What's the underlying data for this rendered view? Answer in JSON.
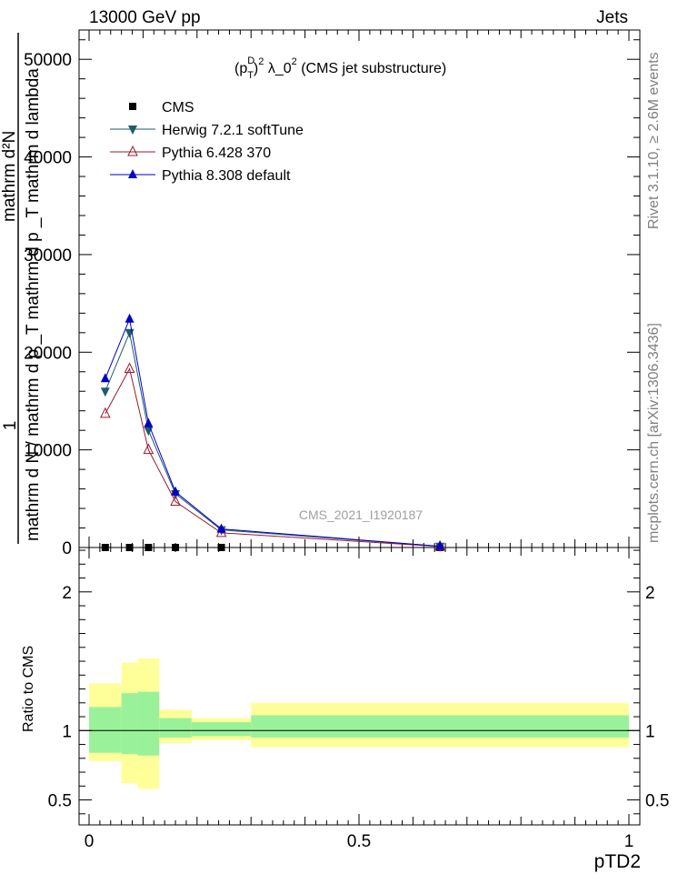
{
  "header": {
    "left": "13000 GeV pp",
    "right": "Jets"
  },
  "side_labels": {
    "rivet": "Rivet 3.1.10, ≥ 2.6M events",
    "mcplots": "mcplots.cern.ch [arXiv:1306.3436]"
  },
  "watermark": "CMS_2021_I1920187",
  "ratio_ylabel": "Ratio to CMS",
  "colors": {
    "herwig": "#1f5c6b",
    "pythia6": "#9b1b30",
    "pythia8": "#0000c8",
    "band_inner": "#99f299",
    "band_outer": "#ffff99",
    "cms": "#000000"
  },
  "chart_data": {
    "type": "line",
    "title": "(p_T^D)^2 λ_0^2 (CMS jet substructure)",
    "title_parts": {
      "pre": "(p",
      "sub": "T",
      "sup1": "D",
      "mid": ")",
      "sup2": "2",
      "post": " λ_0",
      "sup3": "2",
      "tail": " (CMS jet substructure)"
    },
    "xlabel": "pTD2",
    "ylabel_num": "1",
    "ylabel_den": "mathrm d N / mathrm d p _T mathrm d p _T mathrm d lambda",
    "ylabel_top": "mathrm d²N",
    "xlim": [
      0,
      1
    ],
    "ylim": [
      0,
      53000
    ],
    "x_ticks": [
      0,
      0.5,
      1
    ],
    "x_tick_labels": [
      "0",
      "0.5",
      "1"
    ],
    "y_ticks": [
      0,
      10000,
      20000,
      30000,
      40000,
      50000
    ],
    "y_tick_labels": [
      "0",
      "10000",
      "20000",
      "30000",
      "40000",
      "50000"
    ],
    "ratio_ylim": [
      0.32,
      2.32
    ],
    "ratio_ticks": [
      0.5,
      1,
      2
    ],
    "ratio_tick_labels": [
      "0.5",
      "1",
      "2"
    ],
    "bin_edges": [
      0,
      0.06,
      0.09,
      0.13,
      0.19,
      0.3,
      1.0
    ],
    "legend": [
      {
        "name": "CMS",
        "marker": "square",
        "color": "#000000"
      },
      {
        "name": "Herwig 7.2.1 softTune",
        "marker": "triangle-down",
        "color": "#1f5c6b"
      },
      {
        "name": "Pythia 6.428 370",
        "marker": "triangle-open",
        "color": "#9b1b30"
      },
      {
        "name": "Pythia 8.308 default",
        "marker": "triangle-up",
        "color": "#0000c8"
      }
    ],
    "series": [
      {
        "name": "CMS",
        "x": [
          0.03,
          0.075,
          0.11,
          0.16,
          0.245,
          0.65
        ],
        "y": [
          0,
          0,
          0,
          0,
          0,
          0
        ]
      },
      {
        "name": "Herwig 7.2.1 softTune",
        "x": [
          0.03,
          0.075,
          0.11,
          0.16,
          0.245,
          0.65
        ],
        "y": [
          16000,
          22000,
          12000,
          5500,
          1800,
          120
        ]
      },
      {
        "name": "Pythia 6.428 370",
        "x": [
          0.03,
          0.075,
          0.11,
          0.16,
          0.245,
          0.65
        ],
        "y": [
          13700,
          18300,
          10000,
          4700,
          1500,
          100
        ]
      },
      {
        "name": "Pythia 8.308 default",
        "x": [
          0.03,
          0.075,
          0.11,
          0.16,
          0.245,
          0.65
        ],
        "y": [
          17300,
          23400,
          12700,
          5700,
          1900,
          130
        ]
      }
    ],
    "ratio_bands": [
      {
        "x0": 0.0,
        "x1": 0.06,
        "inner": [
          0.84,
          1.17
        ],
        "outer": [
          0.78,
          1.34
        ]
      },
      {
        "x0": 0.06,
        "x1": 0.09,
        "inner": [
          0.83,
          1.27
        ],
        "outer": [
          0.62,
          1.49
        ]
      },
      {
        "x0": 0.09,
        "x1": 0.13,
        "inner": [
          0.82,
          1.28
        ],
        "outer": [
          0.58,
          1.52
        ]
      },
      {
        "x0": 0.13,
        "x1": 0.19,
        "inner": [
          0.95,
          1.09
        ],
        "outer": [
          0.91,
          1.15
        ]
      },
      {
        "x0": 0.19,
        "x1": 0.3,
        "inner": [
          0.96,
          1.06
        ],
        "outer": [
          0.93,
          1.09
        ]
      },
      {
        "x0": 0.3,
        "x1": 1.0,
        "inner": [
          0.95,
          1.11
        ],
        "outer": [
          0.88,
          1.2
        ]
      }
    ]
  }
}
